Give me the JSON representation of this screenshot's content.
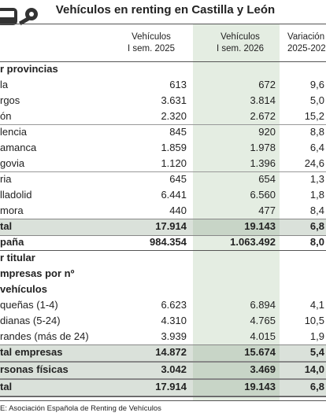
{
  "title": "Vehículos en renting en Castilla y León",
  "header": [
    [
      "Vehículos",
      "I sem. 2025"
    ],
    [
      "Vehículos",
      "I sem. 2026"
    ],
    [
      "Variación",
      "2025-202"
    ]
  ],
  "sections": [
    {
      "heading": [
        "r provincias"
      ],
      "groups": [
        [
          [
            "la",
            "613",
            "672",
            "9,6"
          ],
          [
            "rgos",
            "3.631",
            "3.814",
            "5,0"
          ],
          [
            "ón",
            "2.320",
            "2.672",
            "15,2"
          ]
        ],
        [
          [
            "lencia",
            "845",
            "920",
            "8,8"
          ],
          [
            "amanca",
            "1.859",
            "1.978",
            "6,4"
          ],
          [
            "govia",
            "1.120",
            "1.396",
            "24,6"
          ]
        ],
        [
          [
            "ria",
            "645",
            "654",
            "1,3"
          ],
          [
            "lladolid",
            "6.441",
            "6.560",
            "1,8"
          ],
          [
            "mora",
            "440",
            "477",
            "8,4"
          ]
        ]
      ],
      "totals": [
        [
          "tal",
          "17.914",
          "19.143",
          "6,8"
        ],
        [
          "paña",
          "984.354",
          "1.063.492",
          "8,0"
        ]
      ]
    },
    {
      "heading": [
        "r titular",
        "mpresas por nº",
        "vehículos"
      ],
      "groups": [
        [
          [
            "queñas (1-4)",
            "6.623",
            "6.894",
            "4,1"
          ],
          [
            "dianas (5-24)",
            "4.310",
            "4.765",
            "10,5"
          ],
          [
            "randes (más de 24)",
            "3.939",
            "4.015",
            "1,9"
          ]
        ]
      ],
      "totals": [
        [
          "tal empresas",
          "14.872",
          "15.674",
          "5,4"
        ],
        [
          "rsonas físicas",
          "3.042",
          "3.469",
          "14,0"
        ],
        [
          "tal",
          "17.914",
          "19.143",
          "6,8"
        ]
      ]
    }
  ],
  "source": "E: Asociación Española de Renting de Vehículos"
}
